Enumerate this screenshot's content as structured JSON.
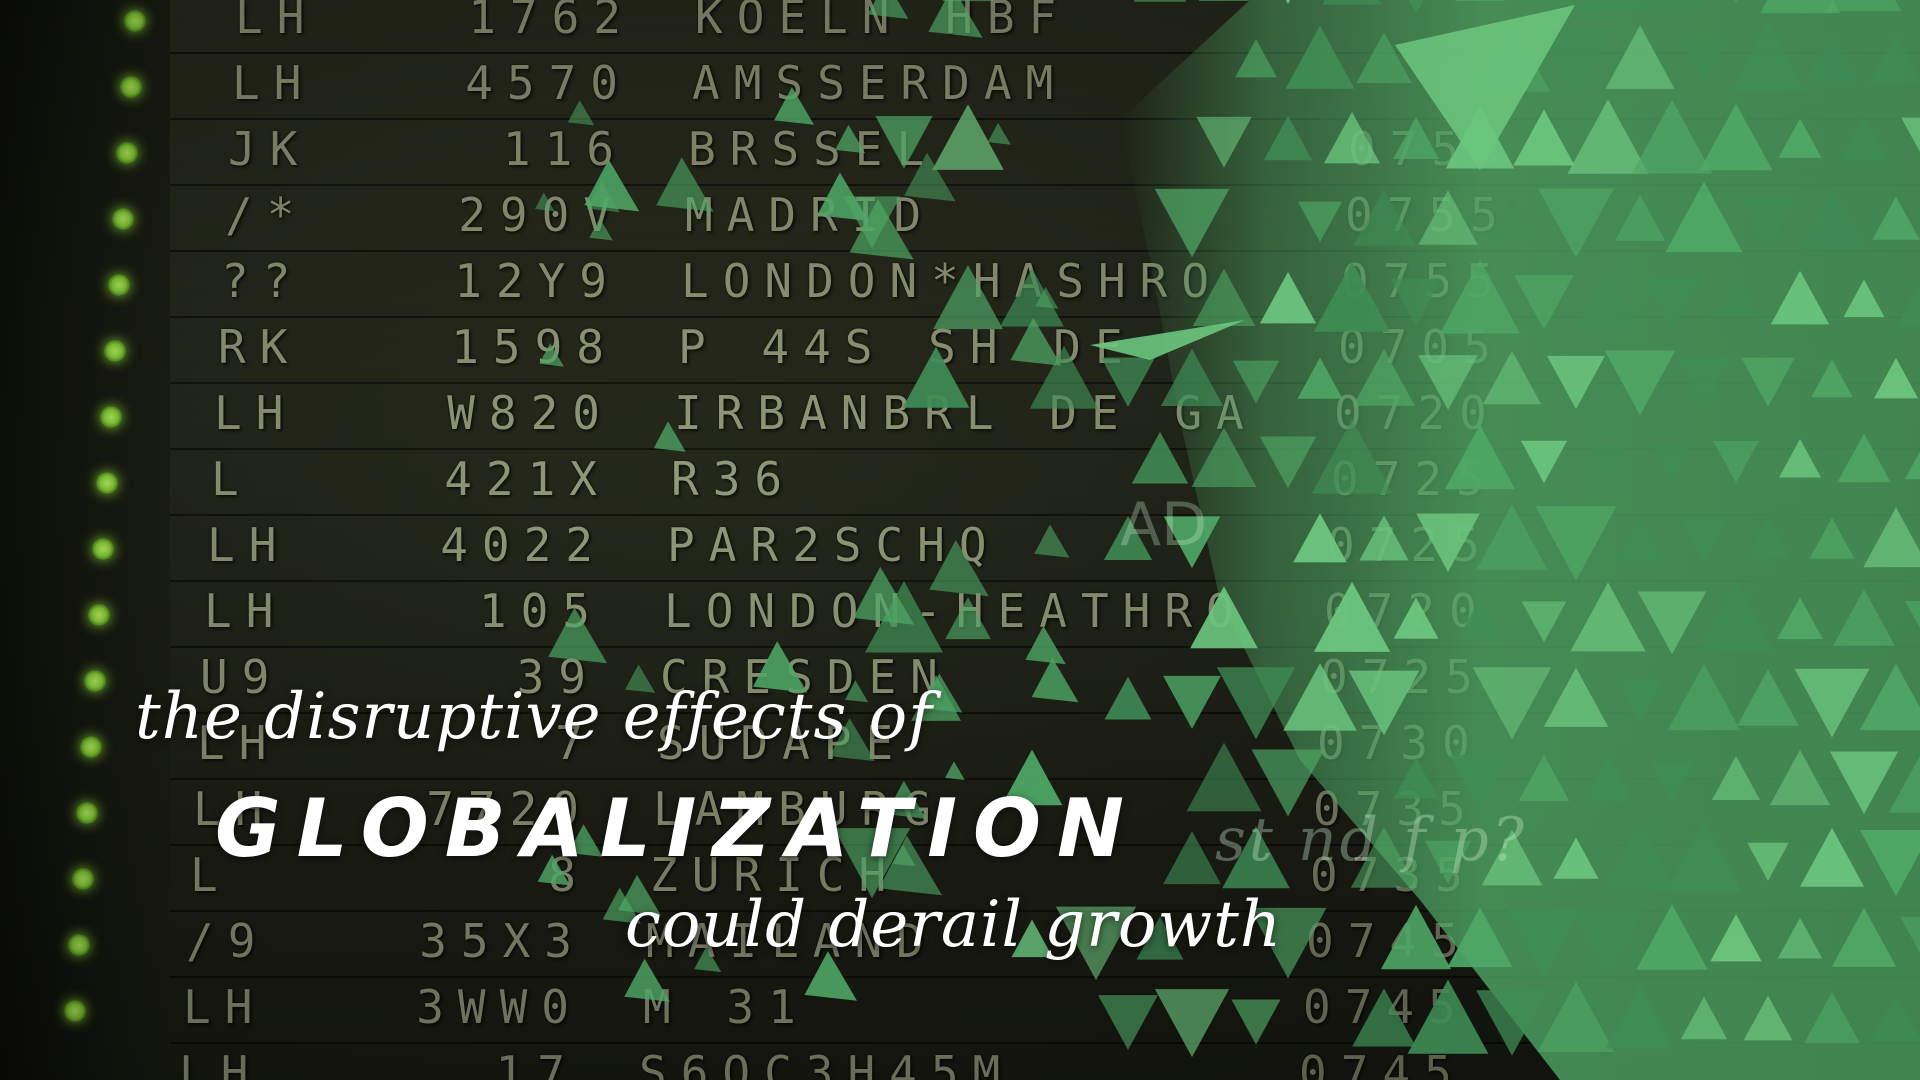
{
  "headline": {
    "line1": "the disruptive effects of",
    "line2": "GLOBALIZATION",
    "line3": "could derail growth",
    "faint_text": "st nd f     p?",
    "faint_ad": "AD"
  },
  "board": {
    "rows": [
      {
        "airline": "LH",
        "flight": "1762",
        "dest": "KOELN HBF",
        "time": ""
      },
      {
        "airline": "LH",
        "flight": "4570",
        "dest": "AMSSERDAM",
        "time": ""
      },
      {
        "airline": "JK",
        "flight": "116",
        "dest": "BRSSEL",
        "time": "0755"
      },
      {
        "airline": "/*",
        "flight": "290V",
        "dest": "MADRID",
        "time": "0755"
      },
      {
        "airline": "??",
        "flight": "12Y9",
        "dest": "LONDON*HASHRO",
        "time": "0755"
      },
      {
        "airline": "RK",
        "flight": "1598",
        "dest": "P 44S SH DE",
        "time": "0705"
      },
      {
        "airline": "LH",
        "flight": "W820",
        "dest": "IRBANBRL DE GA",
        "time": "0720"
      },
      {
        "airline": "L",
        "flight": "421X",
        "dest": "R36",
        "time": "0725"
      },
      {
        "airline": "LH",
        "flight": "4022",
        "dest": "PAR2SCHQ",
        "time": "0725"
      },
      {
        "airline": "LH",
        "flight": "105",
        "dest": "LONDON-HEATHRO",
        "time": "0720"
      },
      {
        "airline": "U9",
        "flight": "39",
        "dest": "CRESDEN",
        "time": "0725"
      },
      {
        "airline": "LH",
        "flight": "7",
        "dest": "SUDAPE",
        "time": "0730"
      },
      {
        "airline": "LH",
        "flight": "7720",
        "dest": "LAMBURG",
        "time": "0735"
      },
      {
        "airline": "L",
        "flight": "8",
        "dest": "ZURICH",
        "time": "0735"
      },
      {
        "airline": "/9",
        "flight": "35X3",
        "dest": "MAILAND",
        "time": "0745"
      },
      {
        "airline": "LH",
        "flight": "3WW0",
        "dest": "M 31",
        "time": "0745"
      },
      {
        "airline": "LH",
        "flight": "17",
        "dest": "S6OC3H45M",
        "time": "0745"
      }
    ]
  },
  "colors": {
    "overlay_green": "#4fa866",
    "overlay_light": "#6cc77e",
    "led": "#8fe03a",
    "text": "#ffffff"
  }
}
